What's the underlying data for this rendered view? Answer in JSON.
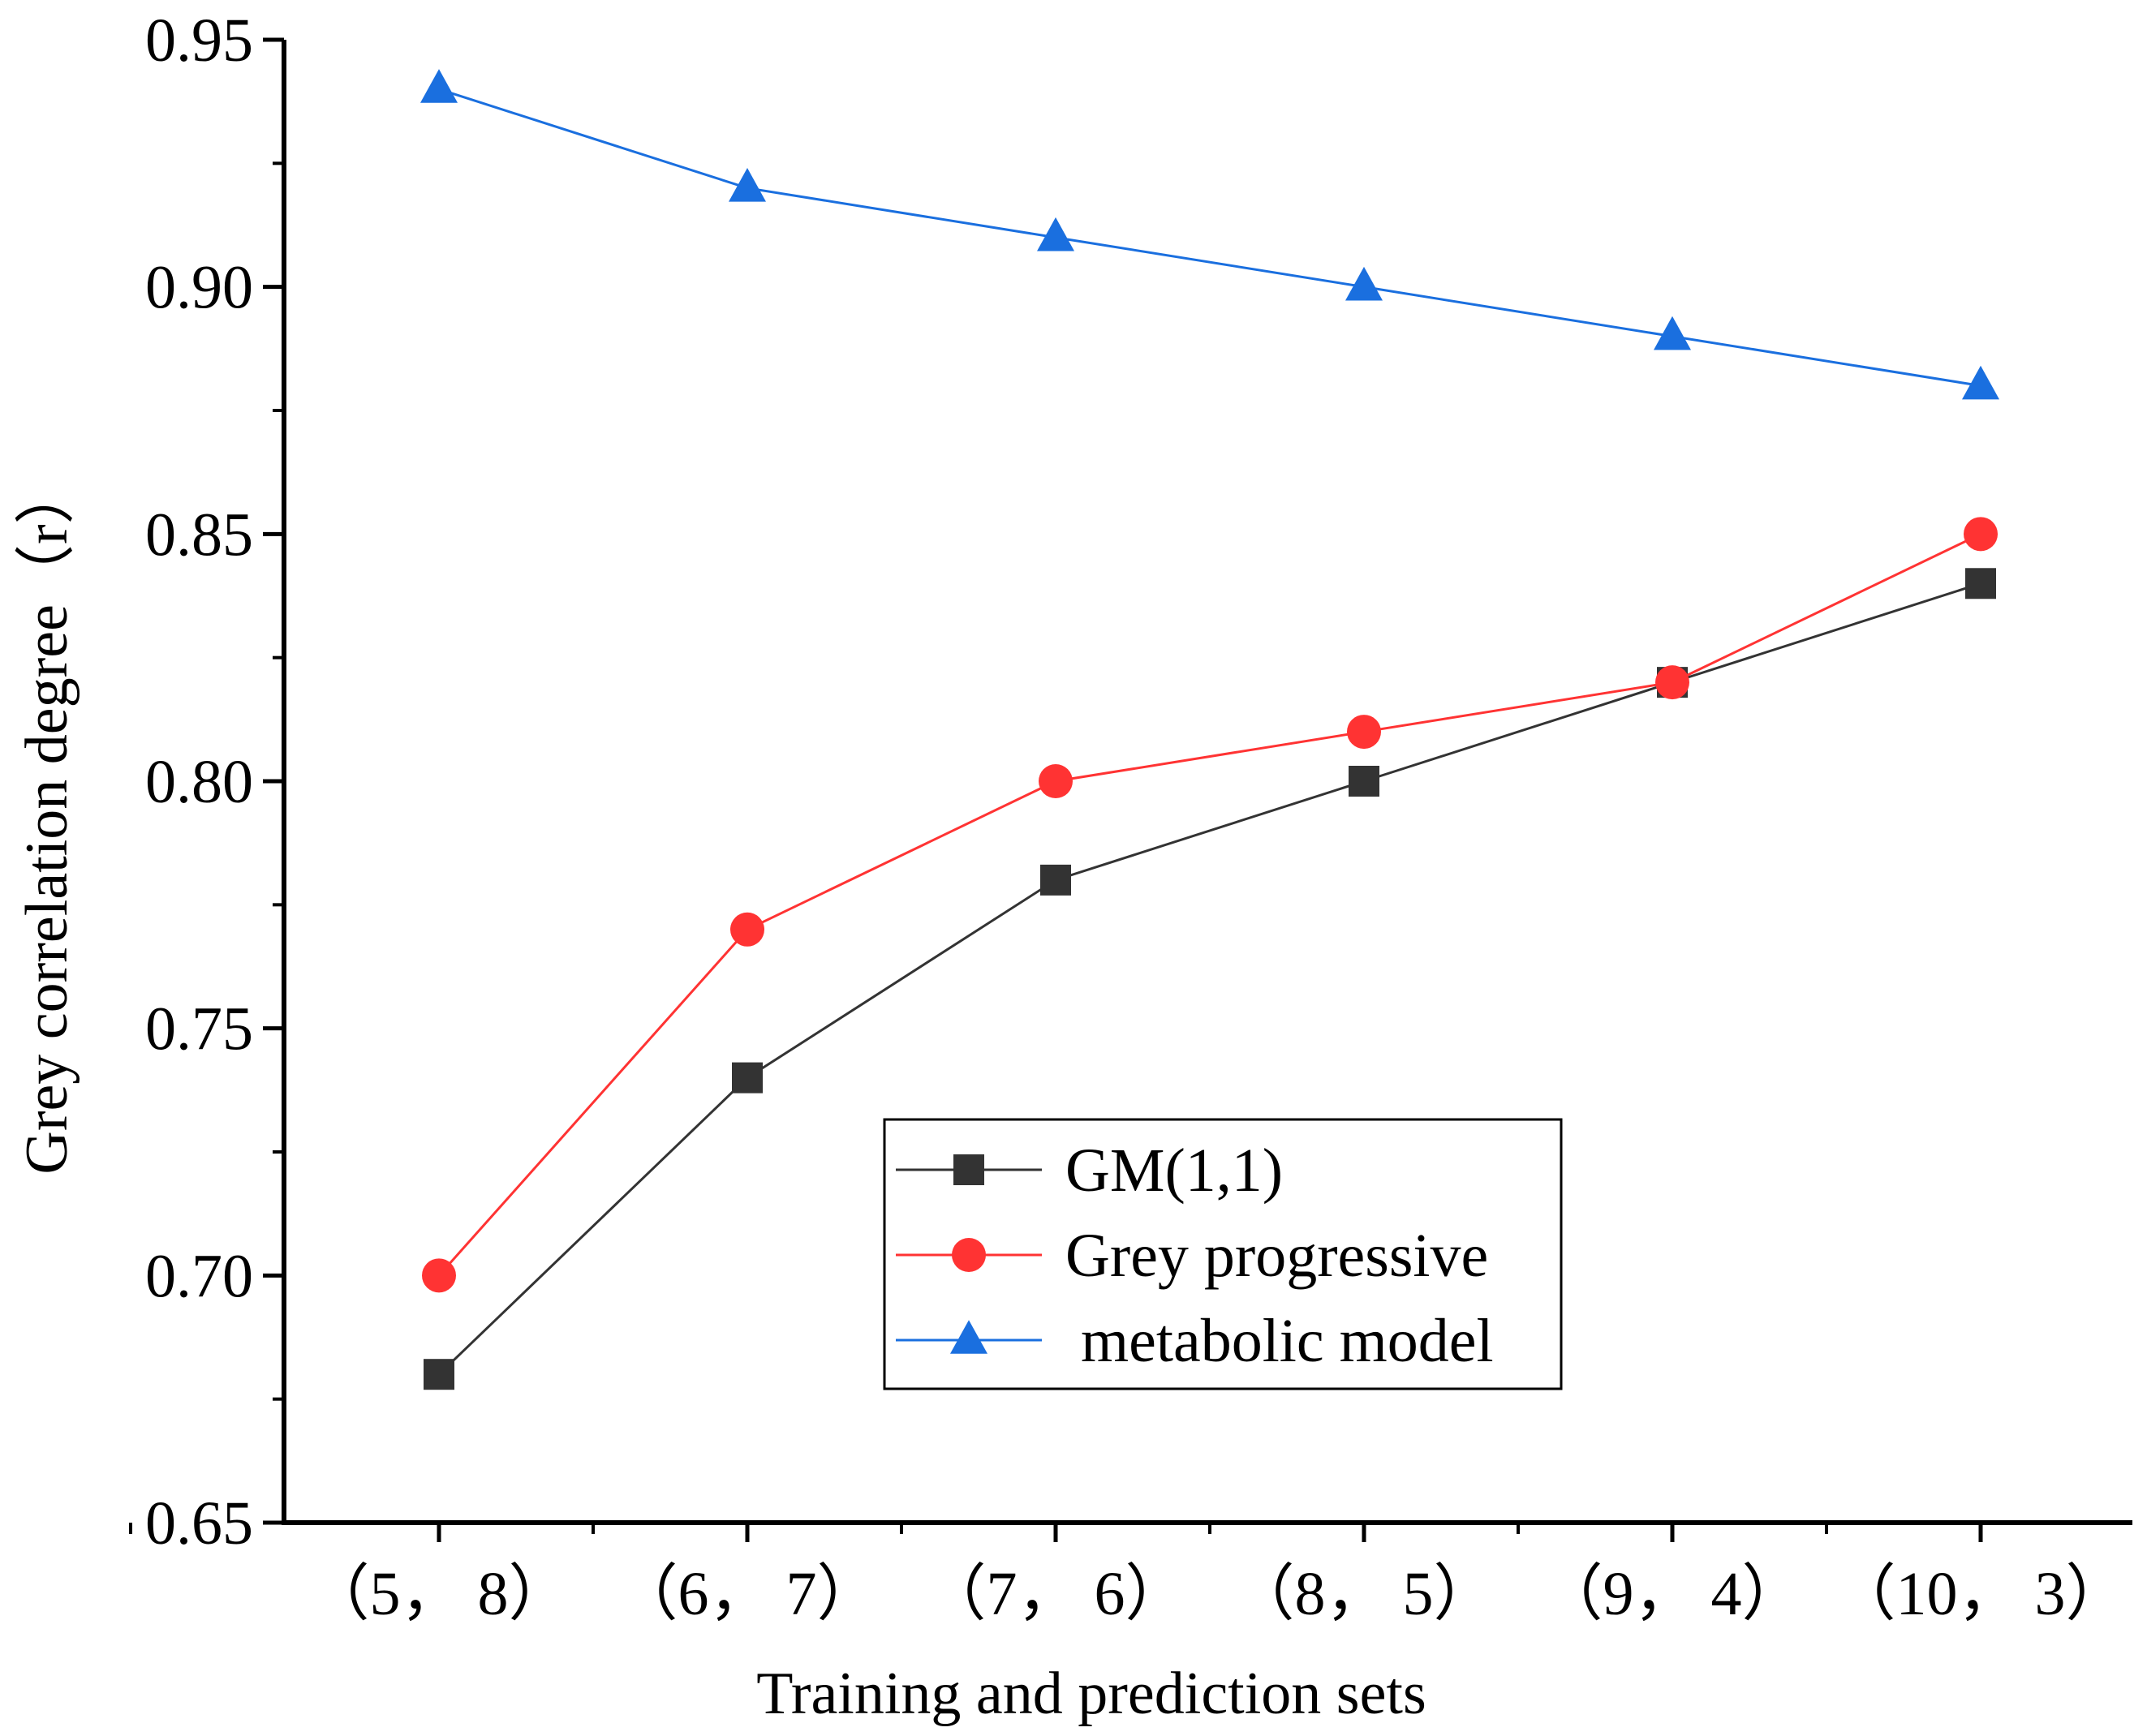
{
  "chart_data": {
    "type": "line",
    "title": "",
    "xlabel": "Training and prediction sets",
    "ylabel": "Grey correlation degree（r）",
    "categories": [
      "（5， 8）",
      "（6， 7）",
      "（7， 6）",
      "（8， 5）",
      "（9， 4）",
      "（10， 3）"
    ],
    "ylim": [
      0.65,
      0.95
    ],
    "yticks": [
      "0.65",
      "0.70",
      "0.75",
      "0.80",
      "0.85",
      "0.90",
      "0.95"
    ],
    "legend_position": "center-right",
    "grid": false,
    "series": [
      {
        "name": "GM(1,1)",
        "values": [
          0.68,
          0.74,
          0.78,
          0.8,
          0.82,
          0.84
        ],
        "color": "#333333",
        "marker": "square"
      },
      {
        "name": "Grey progressive",
        "values": [
          0.7,
          0.77,
          0.8,
          0.81,
          0.82,
          0.85
        ],
        "color": "#ff3333",
        "marker": "circle"
      },
      {
        "name": " metabolic model",
        "values": [
          0.94,
          0.92,
          0.91,
          0.9,
          0.89,
          0.88
        ],
        "color": "#1a6fdf",
        "marker": "triangle"
      }
    ]
  }
}
